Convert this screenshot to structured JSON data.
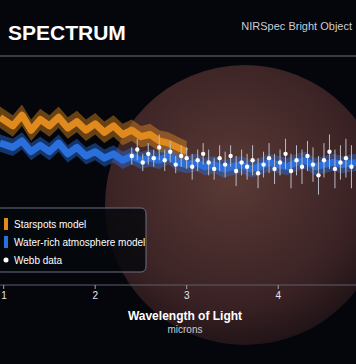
{
  "chart_data": {
    "type": "line",
    "title": "SPECTRUM",
    "subtitle": "NIRSpec Bright Object",
    "xlabel": "Wavelength of Light",
    "xlabel_units": "microns",
    "xlim": [
      0.96,
      4.85
    ],
    "xticks": [
      1,
      2,
      3,
      4
    ],
    "ylim": [
      0,
      100
    ],
    "tick_labels": "x",
    "legend": "bottom-left",
    "series": [
      {
        "name": "Starspots model",
        "color": "#e08a1e",
        "type": "band",
        "x": [
          0.96,
          1.1,
          1.2,
          1.3,
          1.4,
          1.5,
          1.6,
          1.7,
          1.8,
          1.9,
          2.0,
          2.1,
          2.2,
          2.3,
          2.4,
          2.5,
          2.6,
          2.7,
          2.8,
          2.9,
          3.0
        ],
        "values": [
          78,
          74,
          79,
          72,
          77,
          74,
          78,
          73,
          76,
          72,
          75,
          71,
          74,
          70,
          72,
          69,
          70,
          67,
          66,
          64,
          62
        ],
        "lower": [
          73,
          69,
          74,
          67,
          72,
          69,
          73,
          68,
          71,
          67,
          70,
          66,
          69,
          65,
          67,
          64,
          65,
          62,
          61,
          59,
          57
        ],
        "upper": [
          83,
          79,
          84,
          77,
          82,
          79,
          83,
          78,
          81,
          77,
          80,
          76,
          79,
          75,
          77,
          74,
          75,
          72,
          71,
          69,
          67
        ]
      },
      {
        "name": "Water-rich atmosphere model",
        "color": "#2a6fdb",
        "type": "band",
        "x": [
          0.96,
          1.1,
          1.2,
          1.3,
          1.4,
          1.5,
          1.6,
          1.7,
          1.8,
          1.9,
          2.0,
          2.1,
          2.2,
          2.3,
          2.4,
          2.5,
          2.6,
          2.7,
          2.8,
          2.9,
          3.0,
          3.1,
          3.2,
          3.3,
          3.4,
          3.5,
          3.6,
          3.7,
          3.8,
          3.9,
          4.0,
          4.1,
          4.2,
          4.3,
          4.4,
          4.5,
          4.6,
          4.7,
          4.85
        ],
        "values": [
          66,
          64,
          67,
          62,
          65,
          62,
          66,
          61,
          64,
          60,
          62,
          59,
          61,
          58,
          60,
          58,
          59,
          58,
          60,
          57,
          56,
          57,
          55,
          56,
          54,
          55,
          56,
          54,
          55,
          57,
          56,
          55,
          57,
          58,
          55,
          56,
          57,
          56,
          57
        ],
        "lower": [
          62,
          60,
          63,
          58,
          61,
          58,
          62,
          57,
          60,
          56,
          58,
          55,
          57,
          54,
          56,
          54,
          55,
          54,
          56,
          53,
          52,
          53,
          51,
          52,
          50,
          51,
          52,
          50,
          51,
          53,
          52,
          51,
          53,
          54,
          51,
          52,
          53,
          52,
          53
        ],
        "upper": [
          70,
          68,
          71,
          66,
          69,
          66,
          70,
          65,
          68,
          64,
          66,
          63,
          65,
          62,
          64,
          62,
          63,
          62,
          64,
          61,
          60,
          61,
          59,
          60,
          58,
          59,
          60,
          58,
          59,
          61,
          60,
          59,
          61,
          62,
          59,
          60,
          61,
          60,
          61
        ]
      },
      {
        "name": "Webb data",
        "color": "#ffffff",
        "type": "scatter",
        "marker": "circle",
        "x": [
          2.4,
          2.46,
          2.52,
          2.58,
          2.64,
          2.7,
          2.76,
          2.82,
          2.88,
          2.94,
          3.0,
          3.06,
          3.12,
          3.18,
          3.24,
          3.3,
          3.36,
          3.42,
          3.48,
          3.54,
          3.6,
          3.66,
          3.72,
          3.78,
          3.84,
          3.9,
          3.96,
          4.02,
          4.08,
          4.14,
          4.2,
          4.26,
          4.32,
          4.38,
          4.44,
          4.5,
          4.56,
          4.62,
          4.68,
          4.74,
          4.8
        ],
        "values": [
          60,
          63,
          57,
          61,
          59,
          64,
          58,
          62,
          56,
          60,
          59,
          55,
          58,
          61,
          57,
          54,
          59,
          56,
          60,
          53,
          57,
          55,
          58,
          52,
          56,
          59,
          54,
          57,
          61,
          53,
          58,
          55,
          60,
          56,
          51,
          58,
          62,
          54,
          57,
          59,
          55
        ],
        "error": [
          4,
          5,
          4,
          5,
          4,
          6,
          5,
          5,
          4,
          5,
          5,
          6,
          5,
          5,
          6,
          5,
          6,
          6,
          5,
          7,
          6,
          6,
          7,
          7,
          6,
          7,
          7,
          6,
          7,
          8,
          7,
          8,
          7,
          8,
          9,
          8,
          8,
          9,
          8,
          9,
          10
        ]
      }
    ]
  }
}
